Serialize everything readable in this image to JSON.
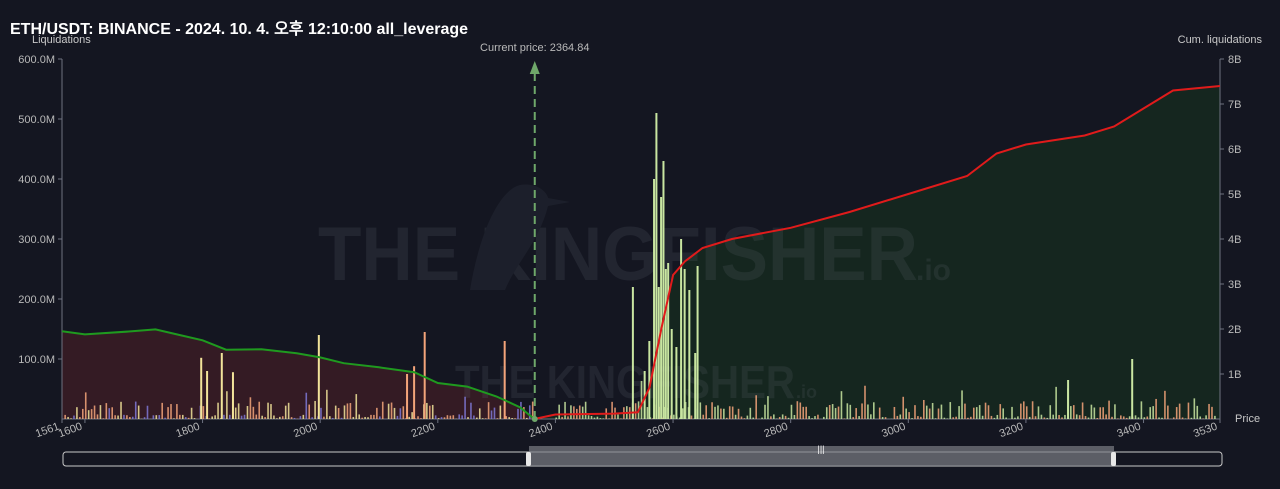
{
  "header": {
    "title": "ETH/USDT: BINANCE - 2024. 10. 4. 오후 12:10:00 all_leverage"
  },
  "watermark": {
    "brand": "THE KINGFISHER",
    "suffix": ".io"
  },
  "colors": {
    "background": "#141621",
    "short_cum_line": "#e01b1b",
    "long_cum_line": "#1f9a1f",
    "long_fill": "#3a1c25",
    "short_fill": "#15281f",
    "current_price": "#6fa86a",
    "bar_light": "#c9e6a1",
    "bar_salmon": "#f4a47a",
    "bar_purple": "#7f78d6",
    "bar_yellow": "#f2e49a"
  },
  "chart_data": {
    "type": "bar+line",
    "title": "ETH/USDT: BINANCE - 2024. 10. 4. 오후 12:10:00 all_leverage",
    "ylabel": "Liquidations",
    "y2label": "Cum. liquidations",
    "xlabel": "Price",
    "xlim": [
      1561,
      3530
    ],
    "ylim": [
      0,
      600000000
    ],
    "y2lim": [
      0,
      8000000000
    ],
    "x_ticks": [
      "1561",
      "1600",
      "1800",
      "2000",
      "2200",
      "2400",
      "2600",
      "2800",
      "3000",
      "3200",
      "3400",
      "3530"
    ],
    "y_ticks": [
      "100.0M",
      "200.0M",
      "300.0M",
      "400.0M",
      "500.0M",
      "600.0M"
    ],
    "y2_ticks": [
      "1B",
      "2B",
      "3B",
      "4B",
      "5B",
      "6B",
      "7B",
      "8B"
    ],
    "current_price": {
      "label": "Current price: 2364.84",
      "value": 2364.84
    },
    "major_bars": [
      {
        "x": 2550,
        "y": 80000000
      },
      {
        "x": 2558,
        "y": 130000000
      },
      {
        "x": 2566,
        "y": 400000000
      },
      {
        "x": 2570,
        "y": 510000000
      },
      {
        "x": 2574,
        "y": 220000000
      },
      {
        "x": 2578,
        "y": 370000000
      },
      {
        "x": 2582,
        "y": 430000000
      },
      {
        "x": 2586,
        "y": 250000000
      },
      {
        "x": 2590,
        "y": 260000000
      },
      {
        "x": 2596,
        "y": 150000000
      },
      {
        "x": 2604,
        "y": 120000000
      },
      {
        "x": 2612,
        "y": 300000000
      },
      {
        "x": 2618,
        "y": 250000000
      },
      {
        "x": 2626,
        "y": 215000000
      },
      {
        "x": 2636,
        "y": 110000000
      },
      {
        "x": 2640,
        "y": 255000000
      },
      {
        "x": 2530,
        "y": 220000000
      },
      {
        "x": 2312,
        "y": 130000000
      },
      {
        "x": 2176,
        "y": 145000000
      },
      {
        "x": 2158,
        "y": 88000000
      },
      {
        "x": 1996,
        "y": 140000000
      },
      {
        "x": 1796,
        "y": 102000000
      },
      {
        "x": 1806,
        "y": 80000000
      },
      {
        "x": 1831,
        "y": 110000000
      },
      {
        "x": 1850,
        "y": 78000000
      },
      {
        "x": 2146,
        "y": 75000000
      },
      {
        "x": 3379,
        "y": 100000000
      },
      {
        "x": 3270,
        "y": 65000000
      }
    ],
    "long_cum_line": [
      {
        "x": 1561,
        "y": 1950000000
      },
      {
        "x": 1600,
        "y": 1880000000
      },
      {
        "x": 1680,
        "y": 1950000000
      },
      {
        "x": 1720,
        "y": 1990000000
      },
      {
        "x": 1760,
        "y": 1870000000
      },
      {
        "x": 1800,
        "y": 1750000000
      },
      {
        "x": 1840,
        "y": 1540000000
      },
      {
        "x": 1900,
        "y": 1550000000
      },
      {
        "x": 1960,
        "y": 1460000000
      },
      {
        "x": 2000,
        "y": 1370000000
      },
      {
        "x": 2040,
        "y": 1240000000
      },
      {
        "x": 2100,
        "y": 1150000000
      },
      {
        "x": 2160,
        "y": 1040000000
      },
      {
        "x": 2200,
        "y": 800000000
      },
      {
        "x": 2250,
        "y": 720000000
      },
      {
        "x": 2300,
        "y": 500000000
      },
      {
        "x": 2340,
        "y": 260000000
      },
      {
        "x": 2364,
        "y": 0
      }
    ],
    "short_cum_line": [
      {
        "x": 2364,
        "y": 0
      },
      {
        "x": 2400,
        "y": 100000000
      },
      {
        "x": 2500,
        "y": 120000000
      },
      {
        "x": 2540,
        "y": 150000000
      },
      {
        "x": 2560,
        "y": 700000000
      },
      {
        "x": 2580,
        "y": 2000000000
      },
      {
        "x": 2600,
        "y": 3200000000
      },
      {
        "x": 2620,
        "y": 3500000000
      },
      {
        "x": 2650,
        "y": 3800000000
      },
      {
        "x": 2700,
        "y": 4000000000
      },
      {
        "x": 2800,
        "y": 4250000000
      },
      {
        "x": 2900,
        "y": 4600000000
      },
      {
        "x": 3000,
        "y": 5000000000
      },
      {
        "x": 3100,
        "y": 5400000000
      },
      {
        "x": 3150,
        "y": 5900000000
      },
      {
        "x": 3200,
        "y": 6100000000
      },
      {
        "x": 3300,
        "y": 6300000000
      },
      {
        "x": 3350,
        "y": 6500000000
      },
      {
        "x": 3400,
        "y": 6900000000
      },
      {
        "x": 3450,
        "y": 7300000000
      },
      {
        "x": 3530,
        "y": 7400000000
      }
    ],
    "grid": false,
    "legend": "none"
  }
}
